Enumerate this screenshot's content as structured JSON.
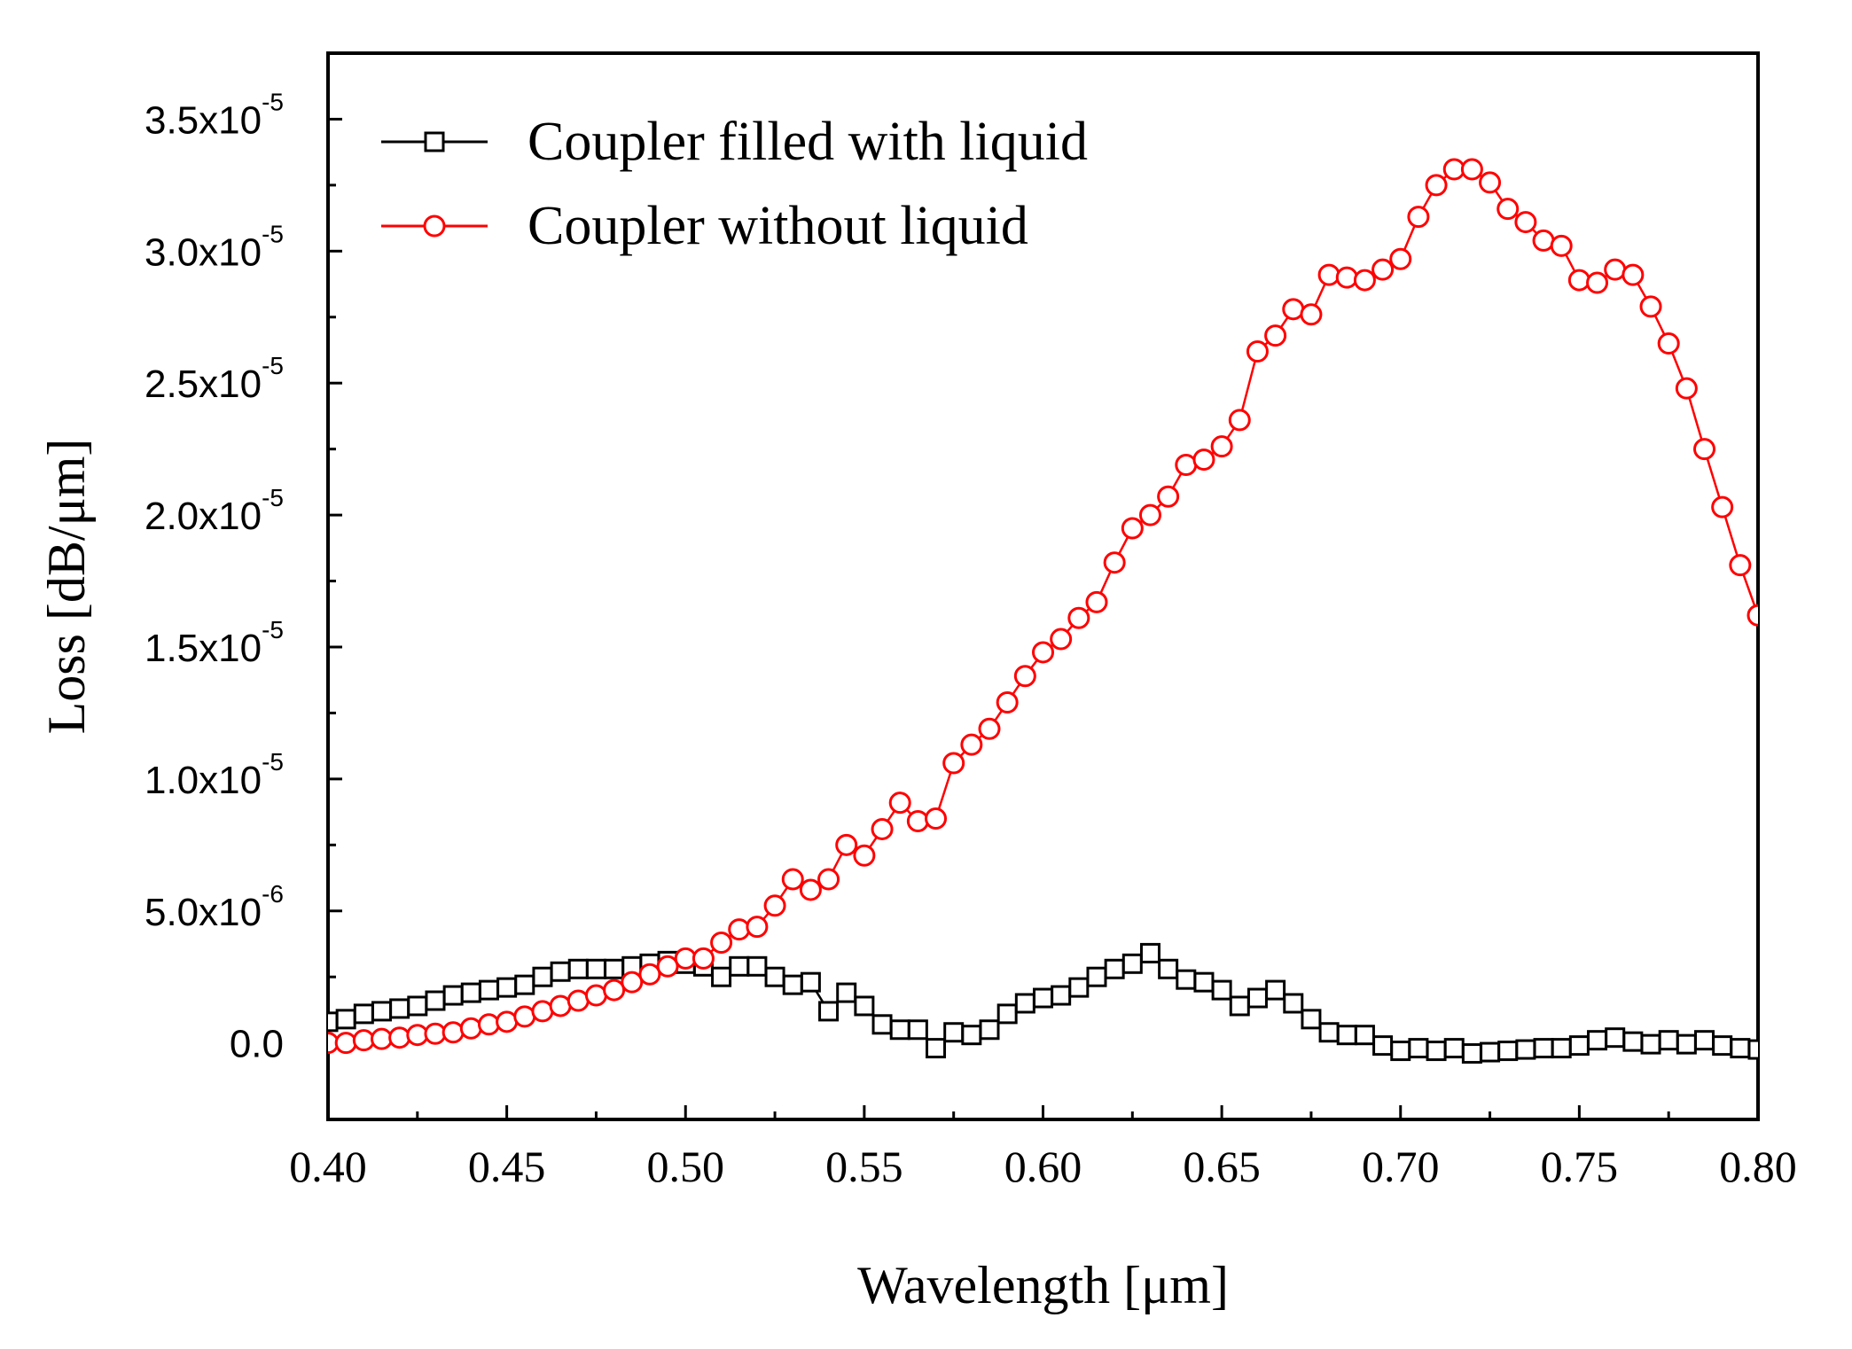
{
  "chart_data": {
    "type": "line",
    "title": "",
    "xlabel": "Wavelength [μm]",
    "ylabel": "Loss [dB/μm]",
    "xlim": [
      0.4,
      0.8
    ],
    "ylim": [
      -2.9e-06,
      3.75e-05
    ],
    "xticks": [
      {
        "value": 0.4,
        "label": "0.40"
      },
      {
        "value": 0.45,
        "label": "0.45"
      },
      {
        "value": 0.5,
        "label": "0.50"
      },
      {
        "value": 0.55,
        "label": "0.55"
      },
      {
        "value": 0.6,
        "label": "0.60"
      },
      {
        "value": 0.65,
        "label": "0.65"
      },
      {
        "value": 0.7,
        "label": "0.70"
      },
      {
        "value": 0.75,
        "label": "0.75"
      },
      {
        "value": 0.8,
        "label": "0.80"
      }
    ],
    "yticks": [
      {
        "value": 0,
        "mantissa": "0.0",
        "exponent": ""
      },
      {
        "value": 5e-06,
        "mantissa": "5.0x10",
        "exponent": "-6"
      },
      {
        "value": 1e-05,
        "mantissa": "1.0x10",
        "exponent": "-5"
      },
      {
        "value": 1.5e-05,
        "mantissa": "1.5x10",
        "exponent": "-5"
      },
      {
        "value": 2e-05,
        "mantissa": "2.0x10",
        "exponent": "-5"
      },
      {
        "value": 2.5e-05,
        "mantissa": "2.5x10",
        "exponent": "-5"
      },
      {
        "value": 3e-05,
        "mantissa": "3.0x10",
        "exponent": "-5"
      },
      {
        "value": 3.5e-05,
        "mantissa": "3.5x10",
        "exponent": "-5"
      }
    ],
    "x": [
      0.4,
      0.405,
      0.41,
      0.415,
      0.42,
      0.425,
      0.43,
      0.435,
      0.44,
      0.445,
      0.45,
      0.455,
      0.46,
      0.465,
      0.47,
      0.475,
      0.48,
      0.485,
      0.49,
      0.495,
      0.5,
      0.505,
      0.51,
      0.515,
      0.52,
      0.525,
      0.53,
      0.535,
      0.54,
      0.545,
      0.55,
      0.555,
      0.56,
      0.565,
      0.57,
      0.575,
      0.58,
      0.585,
      0.59,
      0.595,
      0.6,
      0.605,
      0.61,
      0.615,
      0.62,
      0.625,
      0.63,
      0.635,
      0.64,
      0.645,
      0.65,
      0.655,
      0.66,
      0.665,
      0.67,
      0.675,
      0.68,
      0.685,
      0.69,
      0.695,
      0.7,
      0.705,
      0.71,
      0.715,
      0.72,
      0.725,
      0.73,
      0.735,
      0.74,
      0.745,
      0.75,
      0.755,
      0.76,
      0.765,
      0.77,
      0.775,
      0.78,
      0.785,
      0.79,
      0.795,
      0.8
    ],
    "series": [
      {
        "name": "Coupler filled with liquid",
        "color": "#000000",
        "marker": "square",
        "values": [
          8e-07,
          9e-07,
          1.1e-06,
          1.2e-06,
          1.3e-06,
          1.4e-06,
          1.6e-06,
          1.8e-06,
          1.9e-06,
          2e-06,
          2.1e-06,
          2.2e-06,
          2.5e-06,
          2.7e-06,
          2.8e-06,
          2.8e-06,
          2.8e-06,
          2.9e-06,
          3e-06,
          3.1e-06,
          3e-06,
          2.9e-06,
          2.5e-06,
          2.9e-06,
          2.9e-06,
          2.5e-06,
          2.2e-06,
          2.3e-06,
          1.2e-06,
          1.9e-06,
          1.4e-06,
          7e-07,
          5e-07,
          5e-07,
          -2e-07,
          4e-07,
          3e-07,
          5e-07,
          1.1e-06,
          1.5e-06,
          1.7e-06,
          1.8e-06,
          2.1e-06,
          2.5e-06,
          2.8e-06,
          3e-06,
          3.4e-06,
          2.8e-06,
          2.4e-06,
          2.3e-06,
          2e-06,
          1.4e-06,
          1.7e-06,
          2e-06,
          1.5e-06,
          9e-07,
          4e-07,
          3e-07,
          3e-07,
          -1e-07,
          -3e-07,
          -2e-07,
          -3e-07,
          -2e-07,
          -4e-07,
          -3.5e-07,
          -3e-07,
          -2.5e-07,
          -2e-07,
          -2e-07,
          -1e-07,
          1e-07,
          2e-07,
          5e-08,
          -5e-08,
          1e-07,
          -5e-08,
          1e-07,
          -1e-07,
          -2e-07,
          -2.5e-07
        ]
      },
      {
        "name": "Coupler without liquid",
        "color": "#ff0000",
        "marker": "circle",
        "values": [
          0.0,
          0.0,
          1e-07,
          1.5e-07,
          2e-07,
          3e-07,
          3.5e-07,
          4e-07,
          5.5e-07,
          7e-07,
          8e-07,
          1e-06,
          1.2e-06,
          1.4e-06,
          1.6e-06,
          1.8e-06,
          2e-06,
          2.3e-06,
          2.6e-06,
          2.9e-06,
          3.2e-06,
          3.2e-06,
          3.8e-06,
          4.3e-06,
          4.4e-06,
          5.2e-06,
          6.2e-06,
          5.8e-06,
          6.2e-06,
          7.5e-06,
          7.1e-06,
          8.1e-06,
          9.1e-06,
          8.4e-06,
          8.5e-06,
          1.06e-05,
          1.13e-05,
          1.19e-05,
          1.29e-05,
          1.39e-05,
          1.48e-05,
          1.53e-05,
          1.61e-05,
          1.67e-05,
          1.82e-05,
          1.95e-05,
          2e-05,
          2.07e-05,
          2.19e-05,
          2.21e-05,
          2.26e-05,
          2.36e-05,
          2.62e-05,
          2.68e-05,
          2.78e-05,
          2.76e-05,
          2.91e-05,
          2.9e-05,
          2.89e-05,
          2.93e-05,
          2.97e-05,
          3.13e-05,
          3.25e-05,
          3.31e-05,
          3.31e-05,
          3.26e-05,
          3.16e-05,
          3.11e-05,
          3.04e-05,
          3.02e-05,
          2.89e-05,
          2.88e-05,
          2.93e-05,
          2.91e-05,
          2.79e-05,
          2.65e-05,
          2.48e-05,
          2.25e-05,
          2.03e-05,
          1.81e-05,
          1.62e-05
        ]
      }
    ],
    "legend_position": "top-left",
    "grid": false
  }
}
